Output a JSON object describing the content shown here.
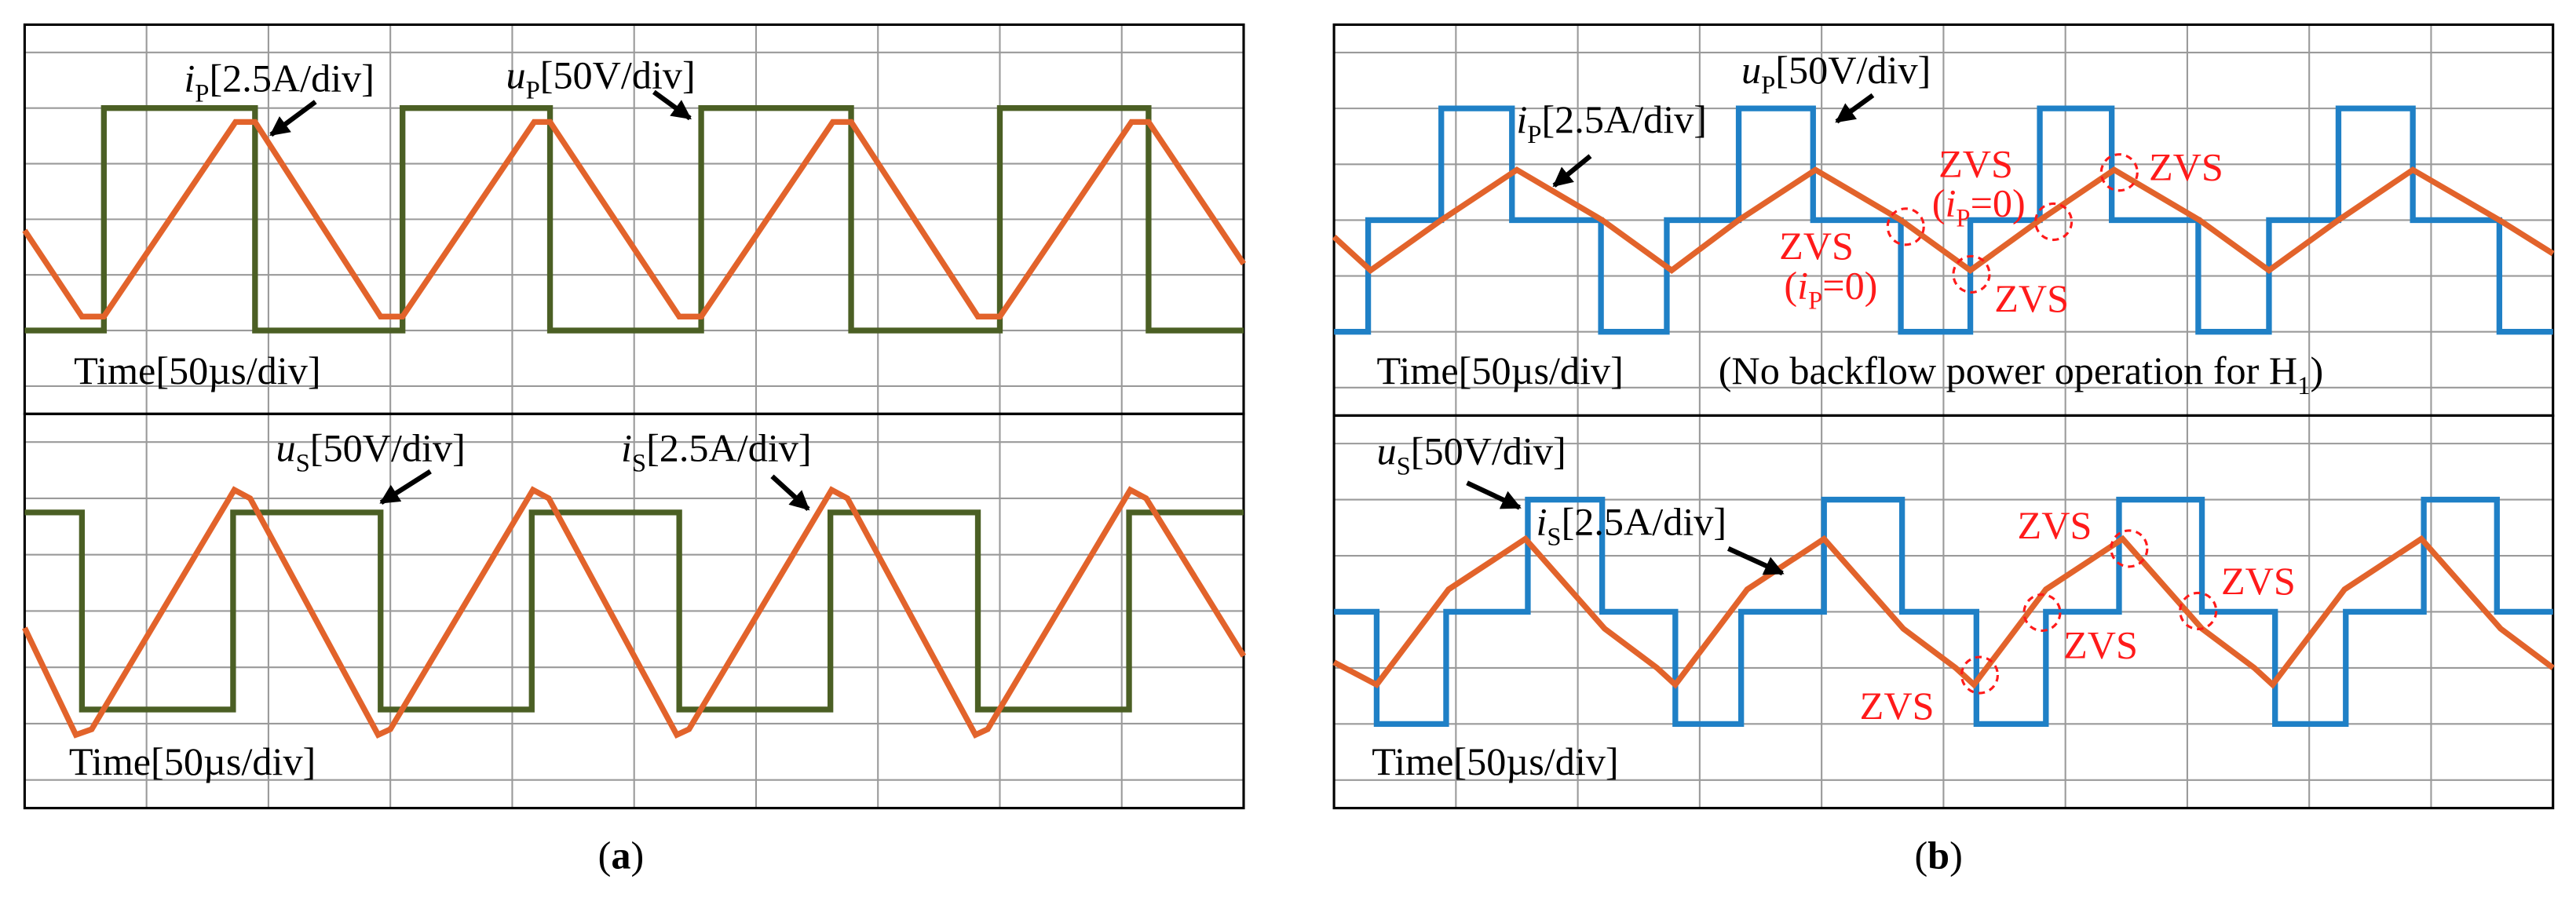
{
  "chart_data": [
    {
      "type": "line",
      "xlim": [
        0,
        10
      ],
      "ylim": [
        -3.5,
        3.5
      ],
      "xticks": [
        0,
        1,
        2,
        3,
        4,
        5,
        6,
        7,
        8,
        9,
        10
      ],
      "yticks": [
        -3,
        -2,
        -1,
        0,
        1,
        2,
        3
      ],
      "grid": true,
      "series": [
        {
          "color": "#4b5f24",
          "x": [
            0,
            0.65,
            0.65,
            1.89,
            1.89,
            3.1,
            3.1,
            4.31,
            4.31,
            5.55,
            5.55,
            6.78,
            6.78,
            8.0,
            8.0,
            9.22,
            9.22,
            10
          ],
          "values": [
            -2,
            -2,
            2,
            2,
            -2,
            -2,
            2,
            2,
            -2,
            -2,
            2,
            2,
            -2,
            -2,
            2,
            2,
            -2,
            -2
          ]
        },
        {
          "color": "#e2632b",
          "x": [
            0,
            0.47,
            0.65,
            1.73,
            1.89,
            2.92,
            3.1,
            4.18,
            4.31,
            5.37,
            5.55,
            6.63,
            6.78,
            7.82,
            8.0,
            9.08,
            9.22,
            10
          ],
          "values": [
            -0.2,
            -1.75,
            -1.75,
            1.75,
            1.75,
            -1.75,
            -1.75,
            1.75,
            1.75,
            -1.75,
            -1.75,
            1.75,
            1.75,
            -1.75,
            -1.75,
            1.75,
            1.75,
            -0.8
          ]
        }
      ],
      "annotations": [
        {
          "parts": [
            {
              "text": "i",
              "style": "italic"
            },
            {
              "text": "P",
              "style": "sub"
            },
            {
              "text": "[2.5A/div]"
            }
          ]
        },
        {
          "parts": [
            {
              "text": "u",
              "style": "italic"
            },
            {
              "text": "P",
              "style": "sub"
            },
            {
              "text": "[50V/div]"
            }
          ]
        },
        {
          "parts": [
            {
              "text": "Time[50µs/div]"
            }
          ]
        }
      ]
    },
    {
      "type": "line",
      "xlim": [
        0,
        10
      ],
      "ylim": [
        -3.5,
        3.5
      ],
      "xticks": [
        0,
        1,
        2,
        3,
        4,
        5,
        6,
        7,
        8,
        9,
        10
      ],
      "yticks": [
        -3,
        -2,
        -1,
        0,
        1,
        2,
        3
      ],
      "grid": true,
      "series": [
        {
          "color": "#4b5f24",
          "x": [
            0,
            0.47,
            0.47,
            1.71,
            1.71,
            2.92,
            2.92,
            4.16,
            4.16,
            5.37,
            5.37,
            6.61,
            6.61,
            7.82,
            7.82,
            9.06,
            9.06,
            10
          ],
          "values": [
            1.75,
            1.75,
            -1.75,
            -1.75,
            1.75,
            1.75,
            -1.75,
            -1.75,
            1.75,
            1.75,
            -1.75,
            -1.75,
            1.75,
            1.75,
            -1.75,
            -1.75,
            1.75,
            1.75
          ]
        },
        {
          "color": "#e2632b",
          "x": [
            0,
            0.42,
            0.55,
            1.72,
            1.85,
            2.9,
            3.0,
            4.17,
            4.3,
            5.35,
            5.45,
            6.62,
            6.75,
            7.8,
            7.9,
            9.07,
            9.2,
            10
          ],
          "values": [
            -0.3,
            -2.2,
            -2.1,
            2.15,
            2.0,
            -2.2,
            -2.1,
            2.15,
            2.0,
            -2.2,
            -2.1,
            2.15,
            2.0,
            -2.2,
            -2.1,
            2.15,
            2.0,
            -0.8
          ]
        }
      ],
      "annotations": [
        {
          "parts": [
            {
              "text": "u",
              "style": "italic"
            },
            {
              "text": "S",
              "style": "sub"
            },
            {
              "text": "[50V/div]"
            }
          ]
        },
        {
          "parts": [
            {
              "text": "i",
              "style": "italic"
            },
            {
              "text": "S",
              "style": "sub"
            },
            {
              "text": "[2.5A/div]"
            }
          ]
        },
        {
          "parts": [
            {
              "text": "Time[50µs/div]"
            }
          ]
        }
      ]
    },
    {
      "type": "line",
      "xlim": [
        0,
        10
      ],
      "ylim": [
        -3.5,
        3.5
      ],
      "xticks": [
        0,
        1,
        2,
        3,
        4,
        5,
        6,
        7,
        8,
        9,
        10
      ],
      "yticks": [
        -3,
        -2,
        -1,
        0,
        1,
        2,
        3
      ],
      "grid": true,
      "series": [
        {
          "color": "#1f80c6",
          "x": [
            0,
            0.28,
            0.28,
            0.88,
            0.88,
            1.46,
            1.46,
            2.19,
            2.19,
            2.73,
            2.73,
            3.32,
            3.32,
            3.93,
            3.93,
            4.65,
            4.65,
            5.22,
            5.22,
            5.79,
            5.79,
            6.38,
            6.38,
            7.09,
            7.09,
            7.67,
            7.67,
            8.24,
            8.24,
            8.85,
            8.85,
            9.56,
            9.56,
            10
          ],
          "values": [
            -2,
            -2,
            0,
            0,
            2,
            2,
            0,
            0,
            -2,
            -2,
            0,
            0,
            2,
            2,
            0,
            0,
            -2,
            -2,
            0,
            0,
            2,
            2,
            0,
            0,
            -2,
            -2,
            0,
            0,
            2,
            2,
            0,
            0,
            -2,
            -2
          ]
        },
        {
          "color": "#e2632b",
          "x": [
            0,
            0.3,
            0.88,
            1.5,
            2.2,
            2.77,
            3.32,
            3.95,
            4.65,
            5.22,
            5.79,
            6.4,
            7.1,
            7.67,
            8.24,
            8.85,
            9.56,
            10
          ],
          "values": [
            -0.3,
            -0.9,
            0.0,
            0.9,
            0.0,
            -0.9,
            0.0,
            0.9,
            0.0,
            -0.9,
            0.0,
            0.9,
            0.0,
            -0.9,
            0.0,
            0.9,
            0.0,
            -0.6
          ]
        }
      ],
      "annotations": [
        {
          "parts": [
            {
              "text": "u",
              "style": "italic"
            },
            {
              "text": "P",
              "style": "sub"
            },
            {
              "text": "[50V/div]"
            }
          ]
        },
        {
          "parts": [
            {
              "text": "i",
              "style": "italic"
            },
            {
              "text": "P",
              "style": "sub"
            },
            {
              "text": "[2.5A/div]"
            }
          ]
        },
        {
          "parts": [
            {
              "text": "Time[50µs/div]"
            }
          ]
        },
        {
          "parts": [
            {
              "text": "(No backflow power operation for H"
            },
            {
              "text": "1",
              "style": "sub"
            },
            {
              "text": ")"
            }
          ]
        },
        {
          "color": "#ff1a1a",
          "parts": [
            {
              "text": "ZVS"
            }
          ]
        },
        {
          "color": "#ff1a1a",
          "parts": [
            {
              "text": "("
            },
            {
              "text": "i",
              "style": "italic"
            },
            {
              "text": "P",
              "style": "sub"
            },
            {
              "text": "=0)"
            }
          ]
        },
        {
          "color": "#ff1a1a",
          "parts": [
            {
              "text": "ZVS"
            }
          ]
        },
        {
          "color": "#ff1a1a",
          "parts": [
            {
              "text": "ZVS"
            }
          ]
        },
        {
          "color": "#ff1a1a",
          "parts": [
            {
              "text": "("
            },
            {
              "text": "i",
              "style": "italic"
            },
            {
              "text": "P",
              "style": "sub"
            },
            {
              "text": "=0)"
            }
          ]
        },
        {
          "color": "#ff1a1a",
          "parts": [
            {
              "text": "ZVS"
            }
          ]
        }
      ]
    },
    {
      "type": "line",
      "xlim": [
        0,
        10
      ],
      "ylim": [
        -3.5,
        3.5
      ],
      "xticks": [
        0,
        1,
        2,
        3,
        4,
        5,
        6,
        7,
        8,
        9,
        10
      ],
      "yticks": [
        -3,
        -2,
        -1,
        0,
        1,
        2,
        3
      ],
      "grid": true,
      "series": [
        {
          "color": "#1f80c6",
          "x": [
            0,
            0.35,
            0.35,
            0.92,
            0.92,
            1.59,
            1.59,
            2.2,
            2.2,
            2.8,
            2.8,
            3.34,
            3.34,
            4.02,
            4.02,
            4.66,
            4.66,
            5.27,
            5.27,
            5.84,
            5.84,
            6.44,
            6.44,
            7.12,
            7.12,
            7.72,
            7.72,
            8.3,
            8.3,
            8.94,
            8.94,
            9.54,
            9.54,
            10
          ],
          "values": [
            0,
            0,
            -2,
            -2,
            0,
            0,
            2,
            2,
            0,
            0,
            -2,
            -2,
            0,
            0,
            2,
            2,
            0,
            0,
            -2,
            -2,
            0,
            0,
            2,
            2,
            0,
            0,
            -2,
            -2,
            0,
            0,
            2,
            2,
            0,
            0
          ]
        },
        {
          "color": "#e2632b",
          "x": [
            0,
            0.35,
            0.94,
            1.57,
            2.22,
            2.65,
            2.8,
            3.39,
            4.02,
            4.67,
            5.1,
            5.25,
            5.84,
            6.47,
            7.12,
            7.55,
            7.7,
            8.29,
            8.92,
            9.57,
            10
          ],
          "values": [
            -0.9,
            -1.3,
            0.4,
            1.3,
            -0.3,
            -1.0,
            -1.3,
            0.4,
            1.3,
            -0.3,
            -1.0,
            -1.3,
            0.4,
            1.3,
            -0.3,
            -1.0,
            -1.3,
            0.4,
            1.3,
            -0.3,
            -1.0
          ]
        }
      ],
      "annotations": [
        {
          "parts": [
            {
              "text": "u",
              "style": "italic"
            },
            {
              "text": "S",
              "style": "sub"
            },
            {
              "text": "[50V/div]"
            }
          ]
        },
        {
          "parts": [
            {
              "text": "i",
              "style": "italic"
            },
            {
              "text": "S",
              "style": "sub"
            },
            {
              "text": "[2.5A/div]"
            }
          ]
        },
        {
          "parts": [
            {
              "text": "Time[50µs/div]"
            }
          ]
        },
        {
          "color": "#ff1a1a",
          "parts": [
            {
              "text": "ZVS"
            }
          ]
        },
        {
          "color": "#ff1a1a",
          "parts": [
            {
              "text": "ZVS"
            }
          ]
        },
        {
          "color": "#ff1a1a",
          "parts": [
            {
              "text": "ZVS"
            }
          ]
        },
        {
          "color": "#ff1a1a",
          "parts": [
            {
              "text": "ZVS"
            }
          ]
        }
      ]
    }
  ],
  "captions": [
    {
      "parts": [
        {
          "text": "("
        },
        {
          "text": "a",
          "style": "bold"
        },
        {
          "text": ")"
        }
      ]
    },
    {
      "parts": [
        {
          "text": "("
        },
        {
          "text": "b",
          "style": "bold"
        },
        {
          "text": ")"
        }
      ]
    }
  ]
}
